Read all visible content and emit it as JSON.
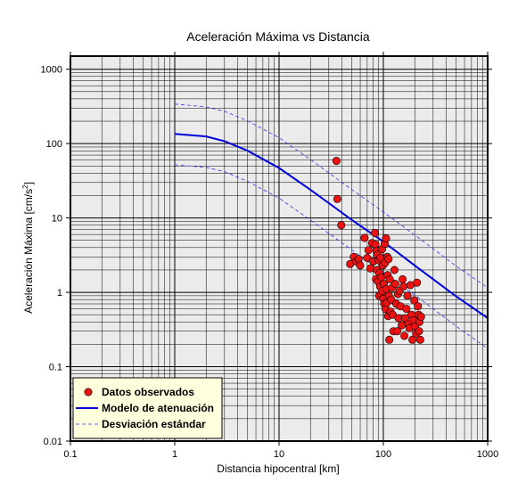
{
  "chart_data": {
    "type": "scatter",
    "title": "Aceleración Máxima vs Distancia",
    "xlabel": "Distancia hipocentral [km]",
    "ylabel": "Aceleración Máxima [cm/s",
    "ylabel_sup": "2",
    "ylabel_end": "]",
    "x_scale": "log",
    "y_scale": "log",
    "xlim": [
      0.1,
      1000
    ],
    "ylim": [
      0.01,
      1500
    ],
    "grid": true,
    "legend_position": "bottom-left",
    "x_ticks": [
      {
        "value": 0.1,
        "label": "0.1"
      },
      {
        "value": 1,
        "label": "1"
      },
      {
        "value": 10,
        "label": "10"
      },
      {
        "value": 100,
        "label": "100"
      },
      {
        "value": 1000,
        "label": "1000"
      }
    ],
    "y_ticks": [
      {
        "value": 0.01,
        "label": "0.01"
      },
      {
        "value": 0.1,
        "label": "0.1"
      },
      {
        "value": 1,
        "label": "1"
      },
      {
        "value": 10,
        "label": "10"
      },
      {
        "value": 100,
        "label": "100"
      },
      {
        "value": 1000,
        "label": "1000"
      }
    ],
    "series": [
      {
        "name": "Datos observados",
        "kind": "points",
        "color": "#ee1111",
        "edge_color": "#000000",
        "points": [
          [
            35.5,
            58.5
          ],
          [
            36.2,
            18.0
          ],
          [
            39.5,
            8.0
          ],
          [
            48,
            2.4
          ],
          [
            52,
            3.0
          ],
          [
            55,
            2.6
          ],
          [
            58,
            2.8
          ],
          [
            60,
            2.3
          ],
          [
            66,
            5.4
          ],
          [
            70,
            2.9
          ],
          [
            72,
            3.7
          ],
          [
            75,
            2.1
          ],
          [
            78,
            4.6
          ],
          [
            80,
            2.6
          ],
          [
            83,
            6.3
          ],
          [
            84,
            4.4
          ],
          [
            85,
            1.5
          ],
          [
            86,
            3.6
          ],
          [
            87,
            2.0
          ],
          [
            88,
            3.2
          ],
          [
            89,
            1.4
          ],
          [
            90,
            2.7
          ],
          [
            91,
            0.9
          ],
          [
            92,
            1.8
          ],
          [
            93,
            1.2
          ],
          [
            94,
            2.9
          ],
          [
            95,
            0.95
          ],
          [
            96,
            1.6
          ],
          [
            97,
            3.8
          ],
          [
            98,
            1.05
          ],
          [
            99,
            2.3
          ],
          [
            100,
            0.82
          ],
          [
            101,
            1.3
          ],
          [
            102,
            0.7
          ],
          [
            103,
            4.5
          ],
          [
            104,
            2.5
          ],
          [
            105,
            0.6
          ],
          [
            106,
            5.3
          ],
          [
            107,
            1.1
          ],
          [
            108,
            0.72
          ],
          [
            109,
            3.0
          ],
          [
            110,
            1.7
          ],
          [
            111,
            0.48
          ],
          [
            112,
            2.8
          ],
          [
            113,
            0.9
          ],
          [
            114,
            0.23
          ],
          [
            115,
            1.5
          ],
          [
            117,
            0.55
          ],
          [
            119,
            0.8
          ],
          [
            121,
            1.15
          ],
          [
            123,
            0.5
          ],
          [
            125,
            0.3
          ],
          [
            128,
            2.0
          ],
          [
            130,
            1.3
          ],
          [
            133,
            0.7
          ],
          [
            136,
            0.3
          ],
          [
            138,
            0.95
          ],
          [
            140,
            0.45
          ],
          [
            143,
            1.05
          ],
          [
            146,
            0.65
          ],
          [
            150,
            0.36
          ],
          [
            153,
            1.5
          ],
          [
            156,
            1.2
          ],
          [
            159,
            0.26
          ],
          [
            162,
            0.45
          ],
          [
            166,
            0.6
          ],
          [
            170,
            0.9
          ],
          [
            174,
            0.38
          ],
          [
            178,
            0.33
          ],
          [
            182,
            1.25
          ],
          [
            186,
            0.5
          ],
          [
            190,
            0.23
          ],
          [
            194,
            0.42
          ],
          [
            198,
            0.78
          ],
          [
            202,
            0.35
          ],
          [
            206,
            0.28
          ],
          [
            210,
            1.35
          ],
          [
            214,
            0.65
          ],
          [
            218,
            0.5
          ],
          [
            222,
            0.4
          ],
          [
            226,
            0.23
          ],
          [
            230,
            0.47
          ],
          [
            220,
            0.3
          ]
        ]
      },
      {
        "name": "Modelo de atenuación",
        "kind": "line",
        "color": "#0000dd",
        "dashed": false,
        "points": [
          [
            1,
            135
          ],
          [
            2,
            125
          ],
          [
            3,
            108
          ],
          [
            5,
            80
          ],
          [
            10,
            47
          ],
          [
            20,
            24
          ],
          [
            50,
            9.4
          ],
          [
            100,
            4.8
          ],
          [
            200,
            2.3
          ],
          [
            500,
            0.88
          ],
          [
            1000,
            0.45
          ]
        ]
      },
      {
        "name": "Desviación estándar",
        "kind": "line",
        "color": "#3333ee",
        "dashed": true,
        "points": [
          [
            1,
            340
          ],
          [
            2,
            312
          ],
          [
            3,
            272
          ],
          [
            5,
            202
          ],
          [
            10,
            120
          ],
          [
            20,
            61
          ],
          [
            50,
            24
          ],
          [
            100,
            12
          ],
          [
            200,
            5.9
          ],
          [
            500,
            2.25
          ],
          [
            1000,
            1.15
          ]
        ]
      },
      {
        "name": "",
        "kind": "line",
        "color": "#3333ee",
        "dashed": true,
        "legend": false,
        "points": [
          [
            1,
            52
          ],
          [
            2,
            48
          ],
          [
            3,
            42
          ],
          [
            5,
            31
          ],
          [
            10,
            18.5
          ],
          [
            20,
            9.4
          ],
          [
            50,
            3.7
          ],
          [
            100,
            1.85
          ],
          [
            200,
            0.92
          ],
          [
            500,
            0.35
          ],
          [
            1000,
            0.175
          ]
        ]
      }
    ],
    "legend": [
      {
        "label": "Datos observados",
        "symbol": "point",
        "color": "#ee1111"
      },
      {
        "label": "Modelo de atenuación",
        "symbol": "line",
        "color": "#0000dd"
      },
      {
        "label": "Desviación estándar",
        "symbol": "dashed",
        "color": "#3333ee"
      }
    ],
    "colors": {
      "plot_background": "#ebebeb",
      "legend_background": "#ffffdd",
      "grid": "#000000"
    }
  }
}
